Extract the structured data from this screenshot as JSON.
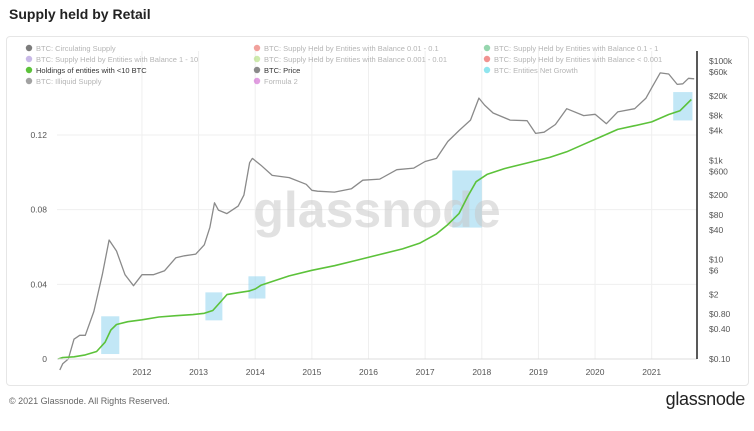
{
  "page": {
    "title": "Supply held by Retail",
    "copyright": "© 2021 Glassnode. All Rights Reserved.",
    "logo": "glassnode",
    "watermark": "glassnode"
  },
  "chart_data": {
    "type": "line",
    "title": "Supply held by Retail",
    "xlabel": "",
    "ylabel": "",
    "xlim": [
      2010.5,
      2021.8
    ],
    "ylim": [
      0,
      0.165
    ],
    "y2_scale": "log",
    "y2lim": [
      0.1,
      160000
    ],
    "grid": true,
    "legend_position": "top-left",
    "x_ticks": [
      "2012",
      "2013",
      "2014",
      "2015",
      "2016",
      "2017",
      "2018",
      "2019",
      "2020",
      "2021"
    ],
    "x_tick_values": [
      2012,
      2013,
      2014,
      2015,
      2016,
      2017,
      2018,
      2019,
      2020,
      2021
    ],
    "y_ticks": [
      "0",
      "0.04",
      "0.08",
      "0.12"
    ],
    "y_tick_values": [
      0,
      0.04,
      0.08,
      0.12
    ],
    "y2_ticks": [
      "$0.10",
      "$0.40",
      "$0.80",
      "$2",
      "$6",
      "$10",
      "$40",
      "$80",
      "$200",
      "$600",
      "$1k",
      "$4k",
      "$8k",
      "$20k",
      "$60k",
      "$100k"
    ],
    "y2_tick_values": [
      0.1,
      0.4,
      0.8,
      2,
      6,
      10,
      40,
      80,
      200,
      600,
      1000,
      4000,
      8000,
      20000,
      60000,
      100000
    ],
    "legend": [
      {
        "label": "BTC: Circulating Supply",
        "color": "#111111",
        "active": false
      },
      {
        "label": "BTC: Supply Held by Entities with Balance 0.01 - 0.1",
        "color": "#e5534b",
        "active": false
      },
      {
        "label": "BTC: Supply Held by Entities with Balance 0.1 - 1",
        "color": "#3fb56b",
        "active": false
      },
      {
        "label": "BTC: Supply Held by Entities with Balance 1 - 10",
        "color": "#9b7fd4",
        "active": false
      },
      {
        "label": "BTC: Supply Held by Entities with Balance 0.001 - 0.01",
        "color": "#a6d86a",
        "active": false
      },
      {
        "label": "BTC: Supply Held by Entities with Balance < 0.001",
        "color": "#e53935",
        "active": false
      },
      {
        "label": "Holdings of entities with <10 BTC",
        "color": "#5cc23a",
        "active": true
      },
      {
        "label": "BTC: Price",
        "color": "#8a8a8a",
        "active": true
      },
      {
        "label": "BTC: Entities Net Growth",
        "color": "#35d0e0",
        "active": false
      },
      {
        "label": "BTC: Illiquid Supply",
        "color": "#555555",
        "active": false
      },
      {
        "label": "Formula 2",
        "color": "#c94fc9",
        "active": false
      }
    ],
    "series": [
      {
        "name": "Holdings of entities with <10 BTC",
        "color": "#5cc23a",
        "axis": "left",
        "x": [
          2010.52,
          2010.6,
          2010.8,
          2011.0,
          2011.2,
          2011.35,
          2011.45,
          2011.55,
          2011.75,
          2012.0,
          2012.3,
          2012.6,
          2012.9,
          2013.1,
          2013.25,
          2013.4,
          2013.5,
          2013.7,
          2013.9,
          2014.0,
          2014.1,
          2014.3,
          2014.6,
          2015.0,
          2015.4,
          2015.8,
          2016.2,
          2016.6,
          2016.9,
          2017.2,
          2017.4,
          2017.6,
          2017.75,
          2017.9,
          2018.1,
          2018.4,
          2018.8,
          2019.2,
          2019.5,
          2019.8,
          2020.1,
          2020.4,
          2020.7,
          2021.0,
          2021.3,
          2021.5,
          2021.7
        ],
        "y": [
          0.0,
          0.0008,
          0.0012,
          0.0022,
          0.004,
          0.009,
          0.0155,
          0.0185,
          0.02,
          0.021,
          0.0225,
          0.0232,
          0.0238,
          0.0245,
          0.026,
          0.031,
          0.0345,
          0.0355,
          0.0365,
          0.0375,
          0.0395,
          0.0415,
          0.0445,
          0.0475,
          0.05,
          0.053,
          0.056,
          0.059,
          0.062,
          0.067,
          0.072,
          0.078,
          0.087,
          0.095,
          0.099,
          0.102,
          0.105,
          0.108,
          0.111,
          0.115,
          0.119,
          0.123,
          0.125,
          0.127,
          0.131,
          0.133,
          0.139
        ]
      },
      {
        "name": "BTC: Price",
        "color": "#8a8a8a",
        "axis": "right",
        "x": [
          2010.55,
          2010.6,
          2010.7,
          2010.8,
          2010.9,
          2011.0,
          2011.15,
          2011.3,
          2011.42,
          2011.55,
          2011.7,
          2011.85,
          2012.0,
          2012.2,
          2012.4,
          2012.6,
          2012.75,
          2012.95,
          2013.1,
          2013.2,
          2013.28,
          2013.35,
          2013.5,
          2013.7,
          2013.8,
          2013.9,
          2013.95,
          2014.1,
          2014.3,
          2014.6,
          2014.9,
          2015.0,
          2015.1,
          2015.4,
          2015.7,
          2015.9,
          2016.2,
          2016.5,
          2016.8,
          2017.0,
          2017.2,
          2017.4,
          2017.6,
          2017.8,
          2017.95,
          2018.05,
          2018.2,
          2018.5,
          2018.8,
          2018.95,
          2019.1,
          2019.3,
          2019.5,
          2019.8,
          2020.0,
          2020.2,
          2020.4,
          2020.7,
          2020.9,
          2021.0,
          2021.15,
          2021.3,
          2021.45,
          2021.55,
          2021.65,
          2021.75
        ],
        "y": [
          0.06,
          0.08,
          0.1,
          0.25,
          0.3,
          0.3,
          0.9,
          5,
          25,
          15,
          5,
          3,
          5,
          5,
          6,
          11,
          12,
          13,
          20,
          45,
          140,
          100,
          85,
          120,
          200,
          900,
          1100,
          800,
          500,
          450,
          330,
          250,
          240,
          230,
          270,
          400,
          420,
          650,
          700,
          950,
          1100,
          2400,
          4000,
          6500,
          18000,
          13000,
          9000,
          6500,
          6300,
          3500,
          3700,
          5300,
          11000,
          8000,
          8500,
          5500,
          9500,
          11000,
          18000,
          29000,
          58000,
          55000,
          34000,
          35000,
          45000,
          44000
        ]
      }
    ],
    "highlight_periods": [
      [
        2011.28,
        2011.6
      ],
      [
        2013.12,
        2013.42
      ],
      [
        2013.88,
        2014.18
      ],
      [
        2017.48,
        2018.0
      ],
      [
        2021.38,
        2021.72
      ]
    ]
  }
}
